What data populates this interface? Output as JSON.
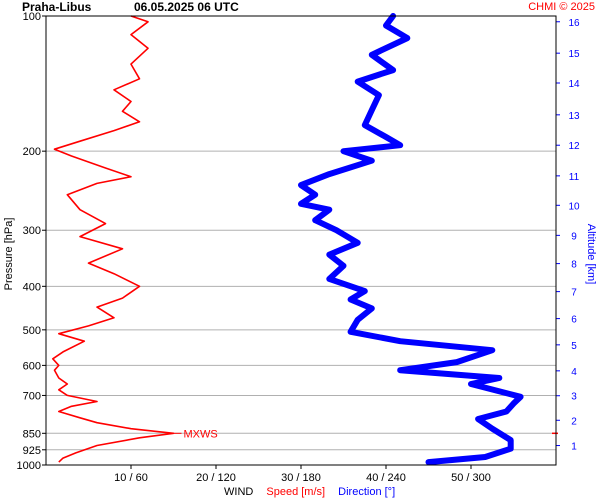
{
  "chart_data": {
    "type": "line",
    "title": "Praha-Libus",
    "subtitle": "06.05.2025 06 UTC",
    "credit": "CHMI © 2025",
    "ylabel": "Pressure [hPa]",
    "y2label": "Altitude [km]",
    "xlabel_parts": [
      {
        "text": "WIND",
        "color": "#000000"
      },
      {
        "text": "Speed [m/s]",
        "color": "#ff0000"
      },
      {
        "text": "Direction [°]",
        "color": "#0000ff"
      }
    ],
    "pressure_ticks": [
      100,
      200,
      300,
      400,
      500,
      600,
      700,
      850,
      925,
      1000
    ],
    "pressure_range": [
      100,
      1000
    ],
    "y_scale": "log-pressure",
    "altitude_ticks": [
      {
        "km": 1,
        "p": 905
      },
      {
        "km": 2,
        "p": 795
      },
      {
        "km": 3,
        "p": 701
      },
      {
        "km": 4,
        "p": 617
      },
      {
        "km": 5,
        "p": 540
      },
      {
        "km": 6,
        "p": 472
      },
      {
        "km": 7,
        "p": 411
      },
      {
        "km": 8,
        "p": 356
      },
      {
        "km": 9,
        "p": 308
      },
      {
        "km": 10,
        "p": 264
      },
      {
        "km": 11,
        "p": 227
      },
      {
        "km": 12,
        "p": 194
      },
      {
        "km": 13,
        "p": 166
      },
      {
        "km": 14,
        "p": 141
      },
      {
        "km": 15,
        "p": 121
      },
      {
        "km": 16,
        "p": 103
      }
    ],
    "x_ticks": [
      "10 / 60",
      "20 / 120",
      "30 / 180",
      "40 / 240",
      "50 / 300"
    ],
    "speed_range": [
      0,
      60
    ],
    "direction_range": [
      0,
      360
    ],
    "grid": true,
    "marker": {
      "label": "MXWS",
      "pressure": 850,
      "speed": 15,
      "color": "#ff0000"
    },
    "series": [
      {
        "name": "Speed [m/s]",
        "color": "#ff0000",
        "x_unit": "m/s",
        "points": [
          [
            1.5,
            985
          ],
          [
            2,
            965
          ],
          [
            3.5,
            940
          ],
          [
            6,
            905
          ],
          [
            11,
            870
          ],
          [
            15,
            850
          ],
          [
            10,
            830
          ],
          [
            6,
            805
          ],
          [
            4,
            785
          ],
          [
            1.5,
            760
          ],
          [
            3,
            740
          ],
          [
            6,
            722
          ],
          [
            2.5,
            700
          ],
          [
            1.5,
            680
          ],
          [
            2.5,
            660
          ],
          [
            1.5,
            640
          ],
          [
            1,
            615
          ],
          [
            1.5,
            600
          ],
          [
            0.8,
            580
          ],
          [
            2,
            560
          ],
          [
            4.5,
            530
          ],
          [
            1.5,
            510
          ],
          [
            5,
            490
          ],
          [
            8,
            470
          ],
          [
            6,
            445
          ],
          [
            9,
            425
          ],
          [
            11,
            400
          ],
          [
            8,
            375
          ],
          [
            5,
            355
          ],
          [
            9,
            330
          ],
          [
            4,
            310
          ],
          [
            7,
            290
          ],
          [
            4,
            270
          ],
          [
            2.5,
            250
          ],
          [
            6,
            236
          ],
          [
            10,
            228
          ],
          [
            7,
            218
          ],
          [
            3,
            205
          ],
          [
            1,
            198
          ],
          [
            4,
            190
          ],
          [
            8,
            180
          ],
          [
            11,
            172
          ],
          [
            9,
            163
          ],
          [
            10,
            155
          ],
          [
            8,
            146
          ],
          [
            11,
            138
          ],
          [
            10,
            128
          ],
          [
            12,
            118
          ],
          [
            10,
            110
          ],
          [
            12,
            103
          ],
          [
            10,
            100
          ]
        ]
      },
      {
        "name": "Direction [°]",
        "color": "#0000ff",
        "x_unit": "deg",
        "points": [
          [
            270,
            985
          ],
          [
            310,
            960
          ],
          [
            328,
            920
          ],
          [
            328,
            880
          ],
          [
            315,
            830
          ],
          [
            305,
            790
          ],
          [
            325,
            760
          ],
          [
            330,
            730
          ],
          [
            335,
            705
          ],
          [
            300,
            660
          ],
          [
            320,
            640
          ],
          [
            250,
            615
          ],
          [
            290,
            590
          ],
          [
            315,
            555
          ],
          [
            250,
            530
          ],
          [
            215,
            505
          ],
          [
            220,
            475
          ],
          [
            230,
            448
          ],
          [
            215,
            428
          ],
          [
            225,
            410
          ],
          [
            200,
            385
          ],
          [
            210,
            360
          ],
          [
            200,
            340
          ],
          [
            220,
            320
          ],
          [
            205,
            300
          ],
          [
            190,
            285
          ],
          [
            200,
            270
          ],
          [
            180,
            262
          ],
          [
            190,
            250
          ],
          [
            180,
            238
          ],
          [
            200,
            225
          ],
          [
            230,
            210
          ],
          [
            210,
            200
          ],
          [
            250,
            194
          ],
          [
            240,
            186
          ],
          [
            225,
            175
          ],
          [
            230,
            162
          ],
          [
            235,
            150
          ],
          [
            220,
            140
          ],
          [
            245,
            132
          ],
          [
            230,
            122
          ],
          [
            255,
            112
          ],
          [
            240,
            105
          ],
          [
            245,
            100
          ]
        ]
      }
    ]
  }
}
